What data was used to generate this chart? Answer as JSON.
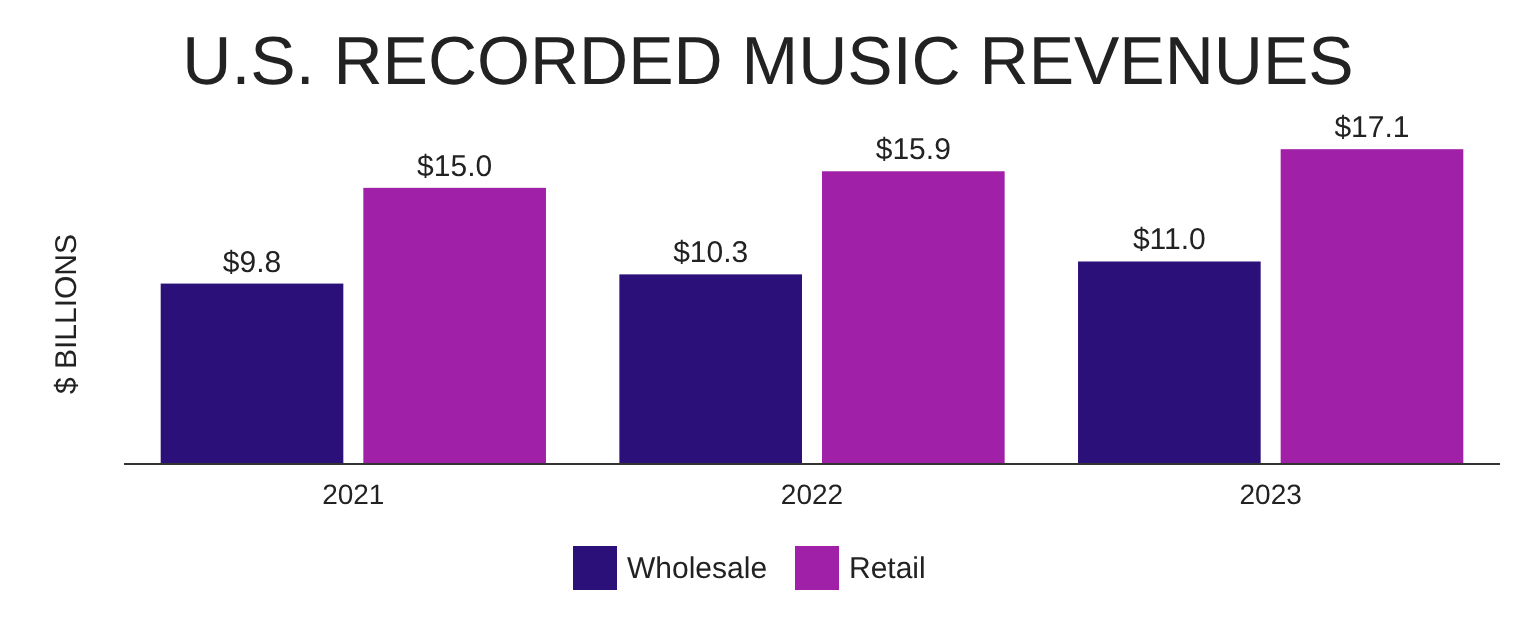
{
  "chart_data": {
    "type": "bar",
    "title": "U.S. RECORDED MUSIC REVENUES",
    "ylabel": "$ BILLIONS",
    "categories": [
      "2021",
      "2022",
      "2023"
    ],
    "series": [
      {
        "name": "Wholesale",
        "color": "#2c1079",
        "values": [
          9.8,
          10.3,
          11.0
        ],
        "value_labels": [
          "$9.8",
          "$10.3",
          "$11.0"
        ]
      },
      {
        "name": "Retail",
        "color": "#a020a8",
        "values": [
          15.0,
          15.9,
          17.1
        ],
        "value_labels": [
          "$15.0",
          "$15.9",
          "$17.1"
        ]
      }
    ],
    "legend": "bottom"
  }
}
